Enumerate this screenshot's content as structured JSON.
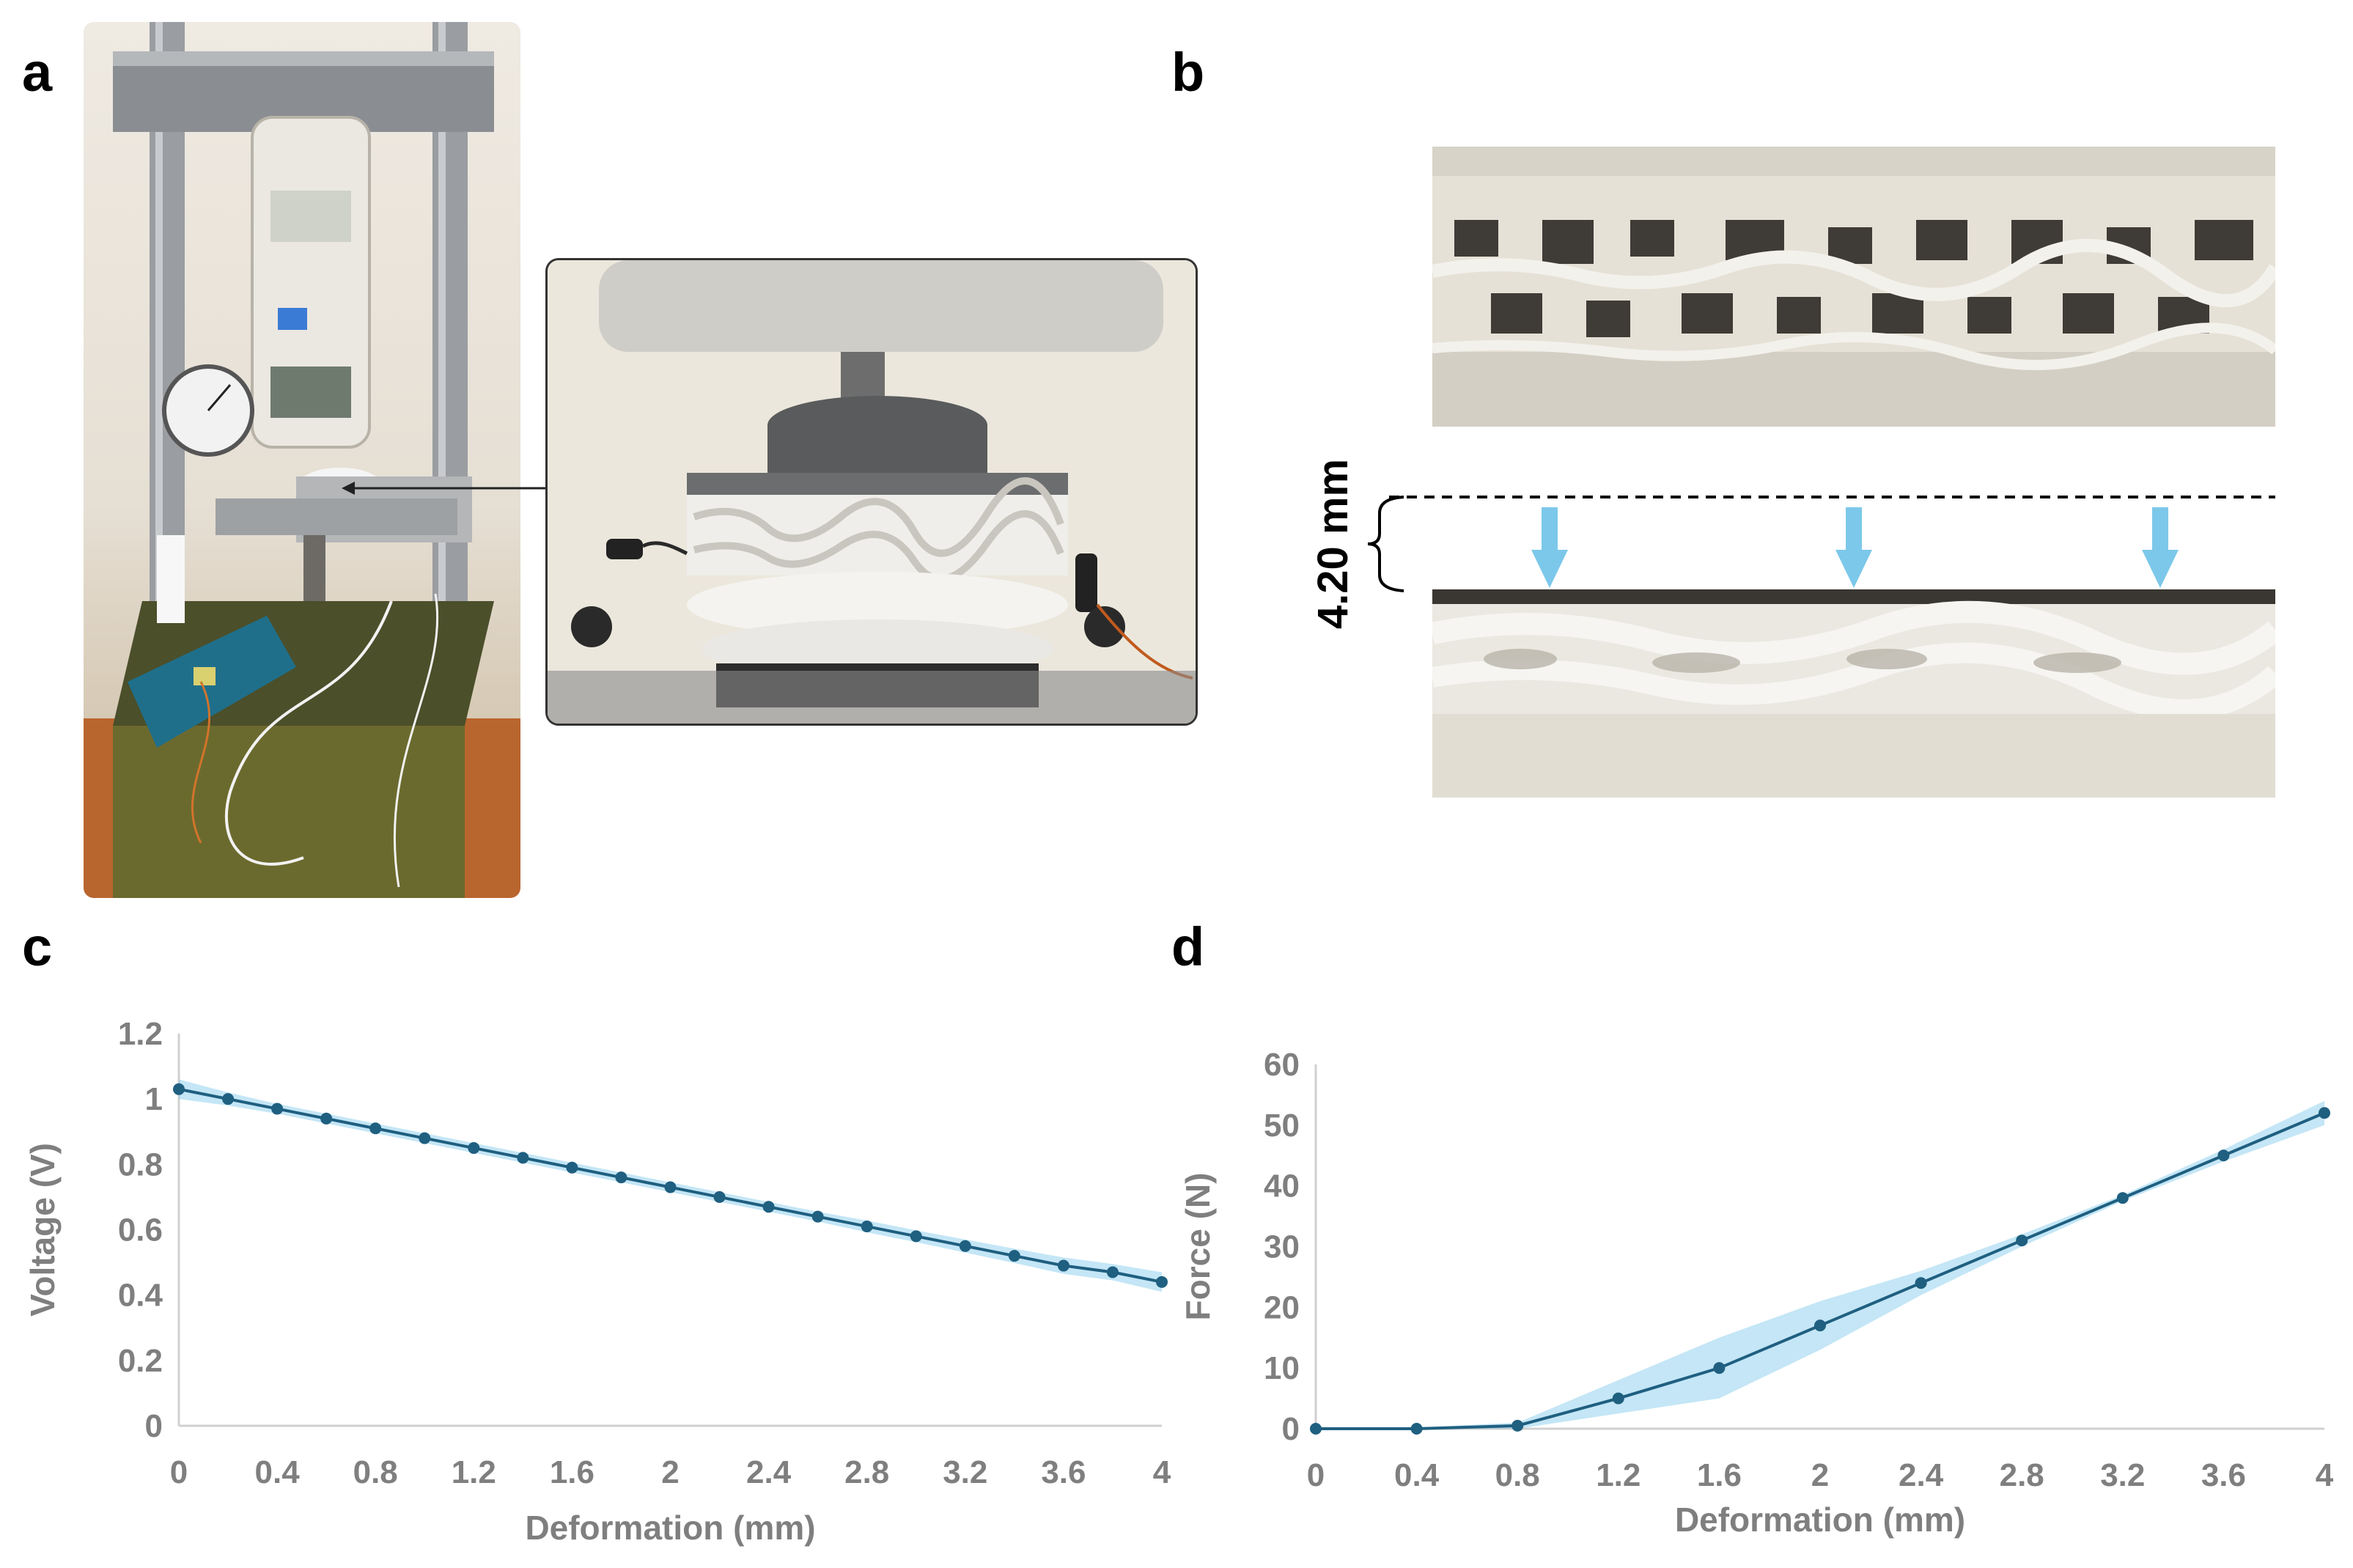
{
  "panels": {
    "a": "a",
    "b": "b",
    "c": "c",
    "d": "d"
  },
  "panel_b": {
    "gap_label": "4.20 mm",
    "arrow_color": "#7cc8ea"
  },
  "colors": {
    "line": "#1f5f80",
    "band": "#7cc8ea",
    "axis_text": "#7f7f7f",
    "axis_line": "#d0d0d0"
  },
  "chart_data": [
    {
      "panel": "c",
      "type": "line",
      "title": "",
      "xlabel": "Deformation (mm)",
      "ylabel": "Voltage (V)",
      "x": [
        0,
        0.2,
        0.4,
        0.6,
        0.8,
        1.0,
        1.2,
        1.4,
        1.6,
        1.8,
        2.0,
        2.2,
        2.4,
        2.6,
        2.8,
        3.0,
        3.2,
        3.4,
        3.6,
        3.8,
        4.0
      ],
      "xticks": [
        "0",
        "0.4",
        "0.8",
        "1.2",
        "1.6",
        "2",
        "2.4",
        "2.8",
        "3.2",
        "3.6",
        "4"
      ],
      "yticks": [
        "0",
        "0.2",
        "0.4",
        "0.6",
        "0.8",
        "1",
        "1.2"
      ],
      "xlim": [
        0,
        4
      ],
      "ylim": [
        0,
        1.2
      ],
      "series": [
        {
          "values": [
            1.03,
            1.0,
            0.97,
            0.94,
            0.91,
            0.88,
            0.85,
            0.82,
            0.79,
            0.76,
            0.73,
            0.7,
            0.67,
            0.64,
            0.61,
            0.58,
            0.55,
            0.52,
            0.49,
            0.47,
            0.44
          ],
          "upper": [
            1.06,
            1.02,
            0.985,
            0.955,
            0.925,
            0.895,
            0.865,
            0.835,
            0.805,
            0.775,
            0.745,
            0.715,
            0.685,
            0.655,
            0.628,
            0.598,
            0.57,
            0.542,
            0.515,
            0.495,
            0.47
          ],
          "lower": [
            1.0,
            0.98,
            0.955,
            0.925,
            0.895,
            0.865,
            0.835,
            0.805,
            0.775,
            0.745,
            0.715,
            0.685,
            0.655,
            0.625,
            0.592,
            0.562,
            0.53,
            0.498,
            0.465,
            0.445,
            0.41
          ]
        }
      ],
      "grid": false,
      "legend": "none"
    },
    {
      "panel": "d",
      "type": "line",
      "title": "",
      "xlabel": "Deformation (mm)",
      "ylabel": "Force (N)",
      "x": [
        0,
        0.4,
        0.8,
        1.2,
        1.6,
        2.0,
        2.4,
        2.8,
        3.2,
        3.6,
        4.0
      ],
      "xticks": [
        "0",
        "0.4",
        "0.8",
        "1.2",
        "1.6",
        "2",
        "2.4",
        "2.8",
        "3.2",
        "3.6",
        "4"
      ],
      "yticks": [
        "0",
        "10",
        "20",
        "30",
        "40",
        "50",
        "60"
      ],
      "xlim": [
        0,
        4
      ],
      "ylim": [
        0,
        60
      ],
      "series": [
        {
          "values": [
            0,
            0,
            0.5,
            5,
            10,
            17,
            24,
            31,
            38,
            45,
            52
          ],
          "upper": [
            0,
            0.2,
            1.0,
            8,
            15,
            21,
            26,
            32,
            38.5,
            46,
            54
          ],
          "lower": [
            0,
            0,
            0,
            2.5,
            5,
            13,
            22,
            30,
            37.5,
            44,
            50
          ]
        }
      ],
      "grid": false,
      "legend": "none"
    }
  ]
}
